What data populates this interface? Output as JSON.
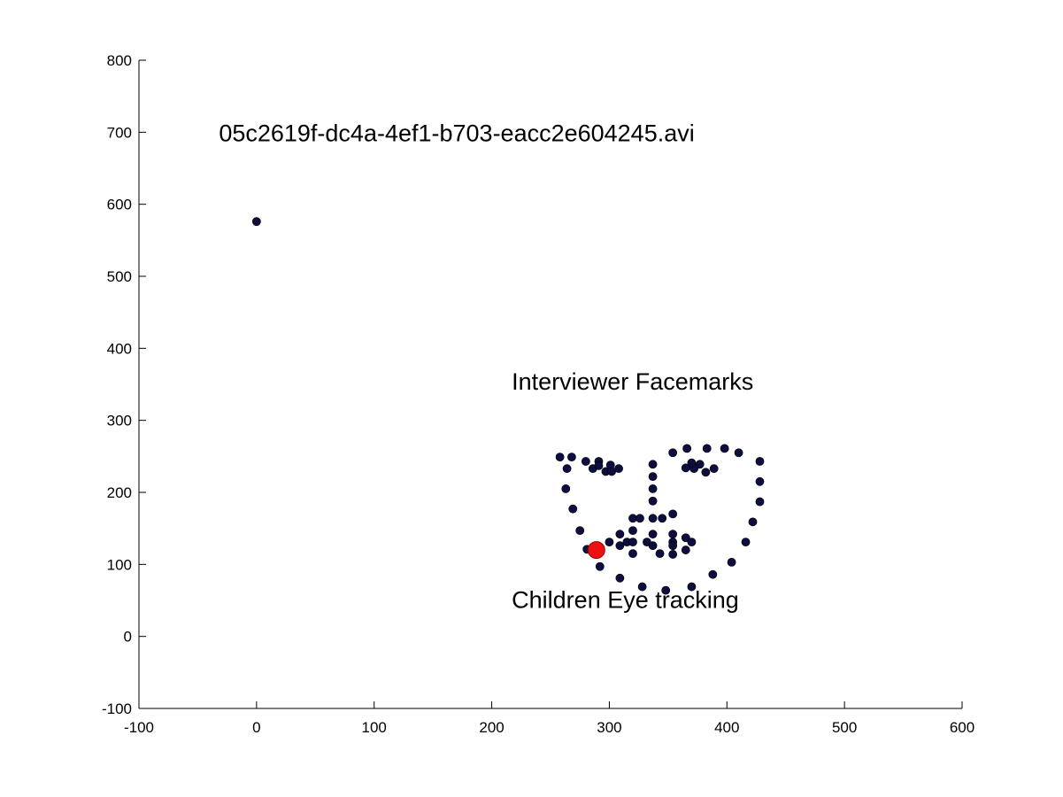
{
  "chart_data": {
    "type": "scatter",
    "xlim": [
      -100,
      600
    ],
    "ylim": [
      -100,
      800
    ],
    "xticks": [
      -100,
      0,
      100,
      200,
      300,
      400,
      500,
      600
    ],
    "yticks": [
      -100,
      0,
      100,
      200,
      300,
      400,
      500,
      600,
      700,
      800
    ],
    "grid": false,
    "legend": "none",
    "colors": {
      "points": "#0d0d3f",
      "eye_marker": "#ee1111",
      "eye_marker_edge": "#990000",
      "axis": "#000000"
    },
    "annotations": [
      {
        "text": "05c2619f-dc4a-4ef1-b703-eacc2e604245.avi",
        "x": -32,
        "y": 700
      },
      {
        "text": "Interviewer Facemarks",
        "x": 217,
        "y": 355
      },
      {
        "text": "Children Eye tracking",
        "x": 217,
        "y": 52
      }
    ],
    "series": [
      {
        "points": [
          [
            0,
            576
          ],
          [
            258,
            249
          ],
          [
            268,
            249
          ],
          [
            280,
            243
          ],
          [
            291,
            243
          ],
          [
            301,
            238
          ],
          [
            286,
            233
          ],
          [
            291,
            237
          ],
          [
            297,
            229
          ],
          [
            302,
            229
          ],
          [
            308,
            233
          ],
          [
            264,
            233
          ],
          [
            263,
            205
          ],
          [
            269,
            177
          ],
          [
            275,
            147
          ],
          [
            281,
            121
          ],
          [
            292,
            97
          ],
          [
            309,
            81
          ],
          [
            328,
            69
          ],
          [
            348,
            64
          ],
          [
            370,
            69
          ],
          [
            388,
            86
          ],
          [
            404,
            103
          ],
          [
            416,
            131
          ],
          [
            422,
            159
          ],
          [
            428,
            187
          ],
          [
            428,
            215
          ],
          [
            428,
            243
          ],
          [
            410,
            255
          ],
          [
            398,
            261
          ],
          [
            383,
            261
          ],
          [
            366,
            261
          ],
          [
            354,
            255
          ],
          [
            377,
            239
          ],
          [
            372,
            233
          ],
          [
            365,
            234
          ],
          [
            370,
            241
          ],
          [
            382,
            228
          ],
          [
            389,
            233
          ],
          [
            337,
            239
          ],
          [
            337,
            222
          ],
          [
            337,
            205
          ],
          [
            337,
            188
          ],
          [
            320,
            164
          ],
          [
            326,
            164
          ],
          [
            337,
            164
          ],
          [
            345,
            164
          ],
          [
            354,
            170
          ],
          [
            320,
            147
          ],
          [
            337,
            142
          ],
          [
            354,
            142
          ],
          [
            309,
            142
          ],
          [
            300,
            131
          ],
          [
            309,
            126
          ],
          [
            315,
            131
          ],
          [
            320,
            131
          ],
          [
            332,
            131
          ],
          [
            337,
            126
          ],
          [
            354,
            131
          ],
          [
            365,
            137
          ],
          [
            370,
            131
          ],
          [
            320,
            115
          ],
          [
            343,
            115
          ],
          [
            354,
            114
          ],
          [
            365,
            120
          ],
          [
            354,
            126
          ]
        ]
      },
      {
        "points": [
          [
            289,
            120
          ]
        ]
      }
    ]
  }
}
